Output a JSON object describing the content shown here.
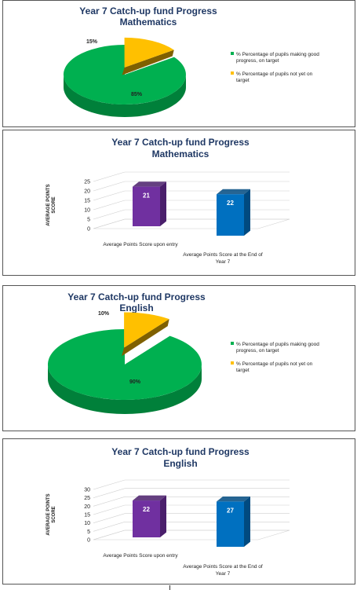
{
  "colors": {
    "title": "#1F3864",
    "green_top": "#00B050",
    "green_side": "#00803A",
    "amber_top": "#FFC000",
    "amber_side": "#7F6000",
    "purple_front": "#7030A0",
    "purple_side": "#4A1F6B",
    "blue_front": "#0070C0",
    "blue_side": "#004A80"
  },
  "chart_data": [
    {
      "type": "pie",
      "title": "Year 7 Catch-up fund Progress",
      "subtitle": "Mathematics",
      "slices": [
        {
          "label": "% Percentage of pupils making good progress, on target",
          "value": 85,
          "value_label": "85%",
          "color": "#00B050"
        },
        {
          "label": "% Percentage of pupils not yet on target",
          "value": 15,
          "value_label": "15%",
          "color": "#FFC000"
        }
      ],
      "legend": "right"
    },
    {
      "type": "bar",
      "title": "Year 7 Catch-up fund Progress",
      "subtitle": "Mathematics",
      "categories": [
        "Average Points Score upon entry",
        "Average Points Score at the End of Year 7"
      ],
      "values": [
        21,
        22
      ],
      "ylabel": "AVERAGE POINTS SCORE",
      "ylim": [
        0,
        25
      ],
      "yticks": [
        "0",
        "5",
        "10",
        "15",
        "20",
        "25"
      ],
      "grid": true
    },
    {
      "type": "pie",
      "title": "Year 7 Catch-up fund Progress",
      "subtitle": "English",
      "slices": [
        {
          "label": "% Percentage of pupils making good progress, on target",
          "value": 90,
          "value_label": "90%",
          "color": "#00B050"
        },
        {
          "label": "% Percentage of pupils not yet on target",
          "value": 10,
          "value_label": "10%",
          "color": "#FFC000"
        }
      ],
      "legend": "right"
    },
    {
      "type": "bar",
      "title": "Year 7 Catch-up fund Progress",
      "subtitle": "English",
      "categories": [
        "Average Points Score upon entry",
        "Average Points Score at the End of Year 7"
      ],
      "values": [
        22,
        27
      ],
      "ylabel": "AVERAGE POINTS SCORE",
      "ylim": [
        0,
        30
      ],
      "yticks": [
        "0",
        "5",
        "10",
        "15",
        "20",
        "25",
        "30"
      ],
      "grid": true
    }
  ]
}
